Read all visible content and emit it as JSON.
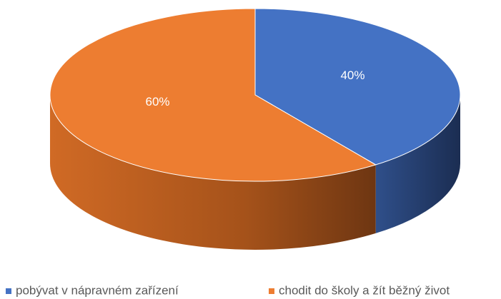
{
  "chart_data": {
    "type": "pie",
    "categories": [
      "pobývat v nápravném zařízení",
      "chodit do školy a žít běžný život"
    ],
    "values": [
      40,
      60
    ],
    "value_labels": [
      "40%",
      "60%"
    ],
    "colors": [
      "#4472c4",
      "#ed7d31"
    ],
    "legend": "bottom"
  }
}
